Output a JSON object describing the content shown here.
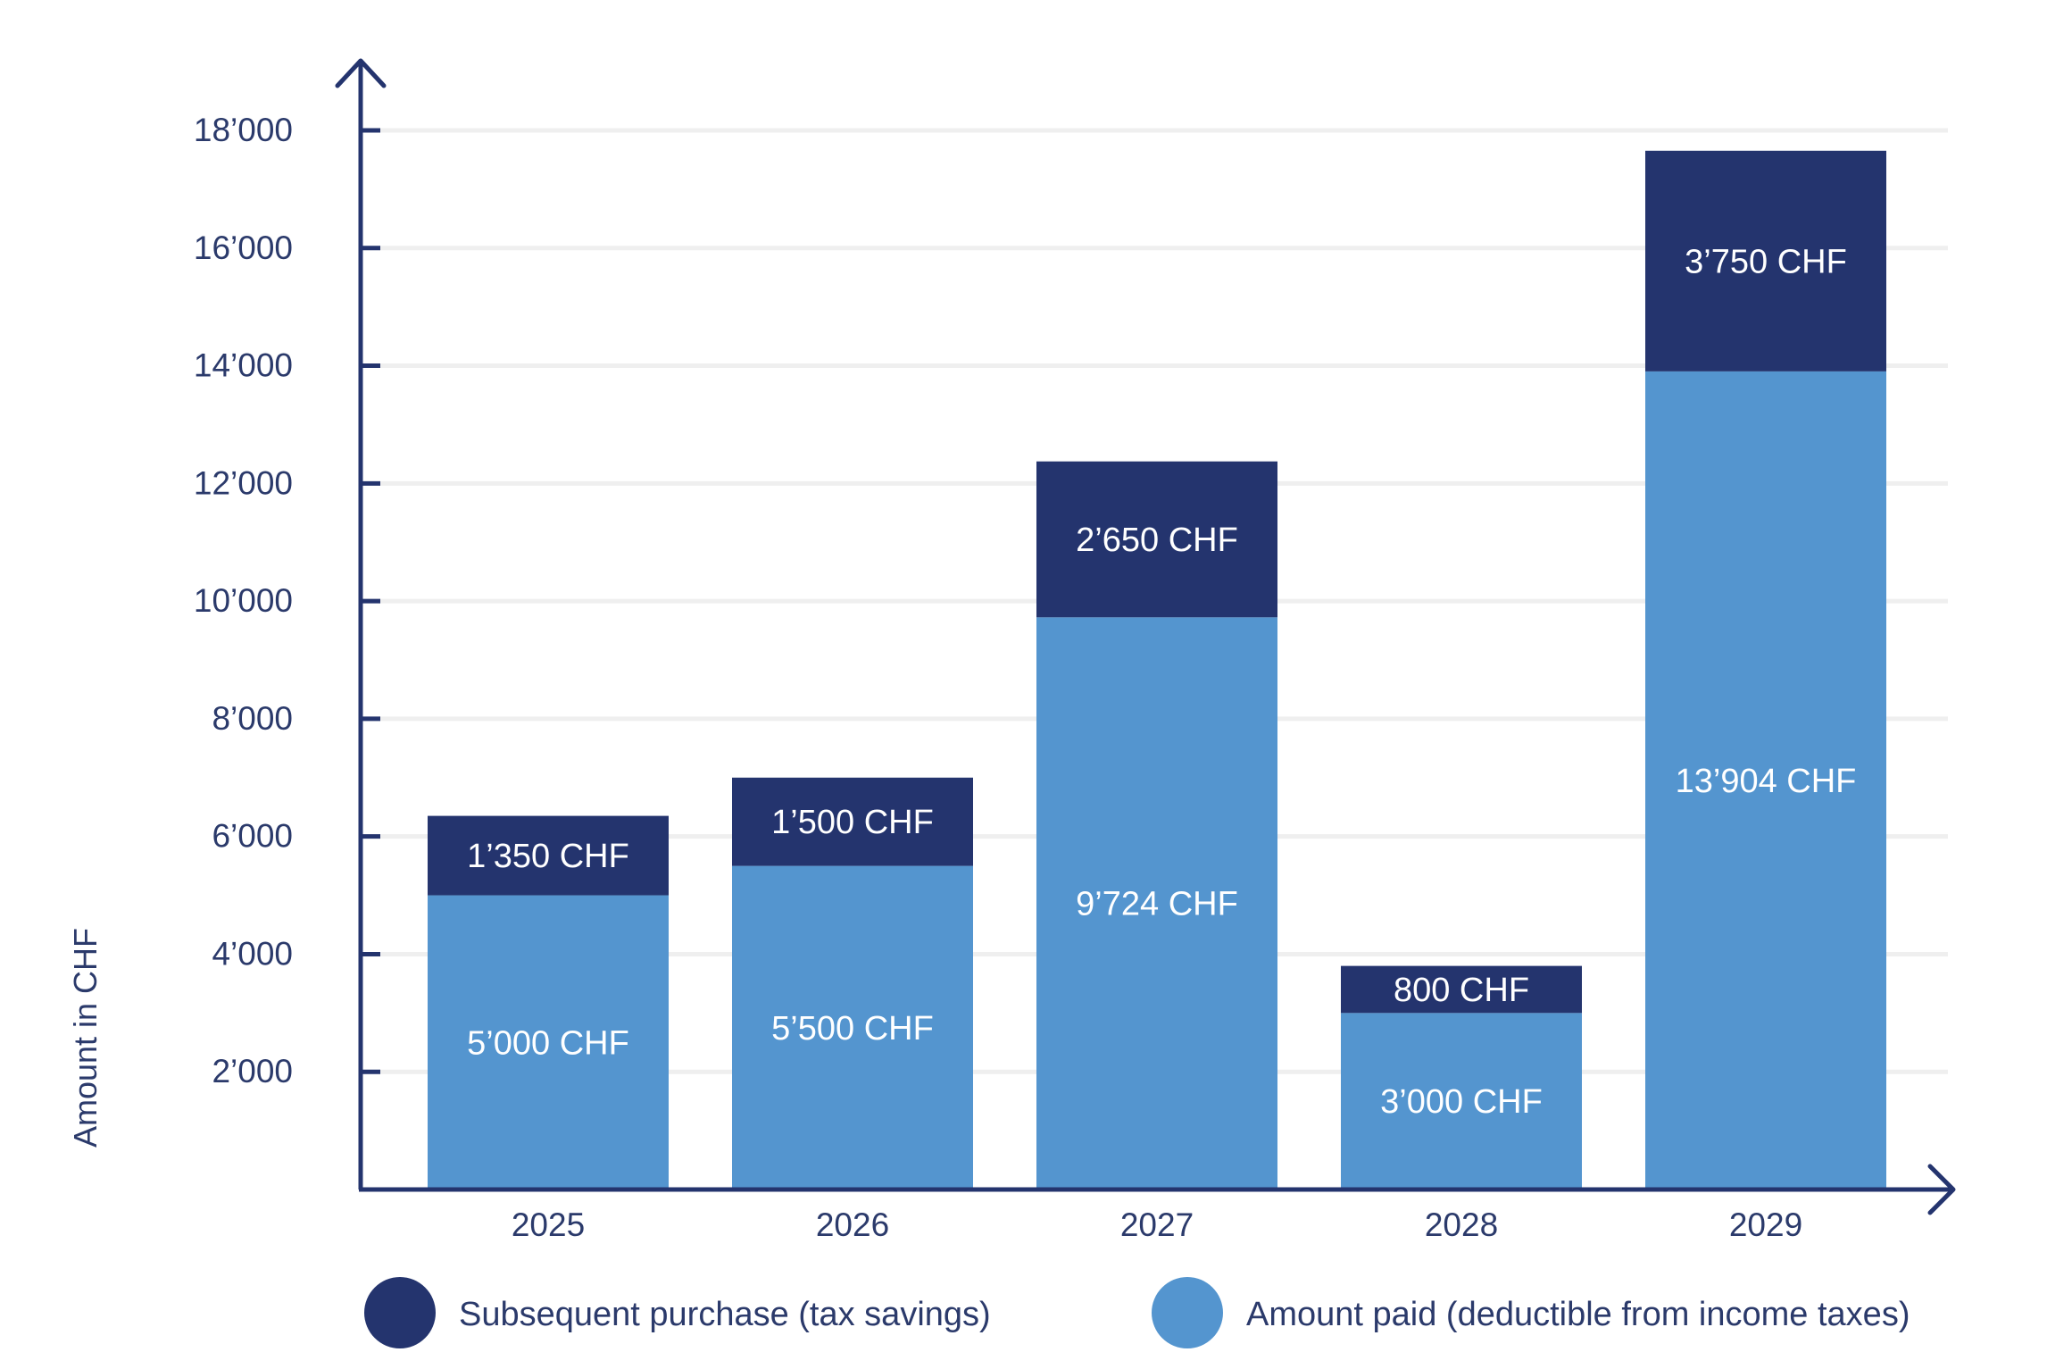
{
  "chart_data": {
    "type": "bar",
    "stacked": true,
    "categories": [
      "2025",
      "2026",
      "2027",
      "2028",
      "2029"
    ],
    "series": [
      {
        "name": "Amount paid (deductible from income taxes)",
        "color": "#5495cf",
        "values": [
          5000,
          5500,
          9724,
          3000,
          13904
        ],
        "labels": [
          "5’000 CHF",
          "5’500 CHF",
          "9’724 CHF",
          "3’000 CHF",
          "13’904 CHF"
        ]
      },
      {
        "name": "Subsequent purchase (tax savings)",
        "color": "#24346e",
        "values": [
          1350,
          1500,
          2650,
          800,
          3750
        ],
        "labels": [
          "1’350 CHF",
          "1’500 CHF",
          "2’650 CHF",
          "800 CHF",
          "3’750 CHF"
        ]
      }
    ],
    "ylabel": "Amount in CHF",
    "xlabel": "",
    "title": "",
    "ylim": [
      0,
      18000
    ],
    "yticks": [
      2000,
      4000,
      6000,
      8000,
      10000,
      12000,
      14000,
      16000,
      18000
    ],
    "ytick_labels": [
      "2’000",
      "4’000",
      "6’000",
      "8’000",
      "10’000",
      "12’000",
      "14’000",
      "16’000",
      "18’000"
    ],
    "grid": true,
    "legend_position": "bottom",
    "legend_order": [
      "Subsequent purchase (tax savings)",
      "Amount paid (deductible from income taxes)"
    ],
    "axis_color": "#24346e",
    "grid_color": "#efefef"
  }
}
